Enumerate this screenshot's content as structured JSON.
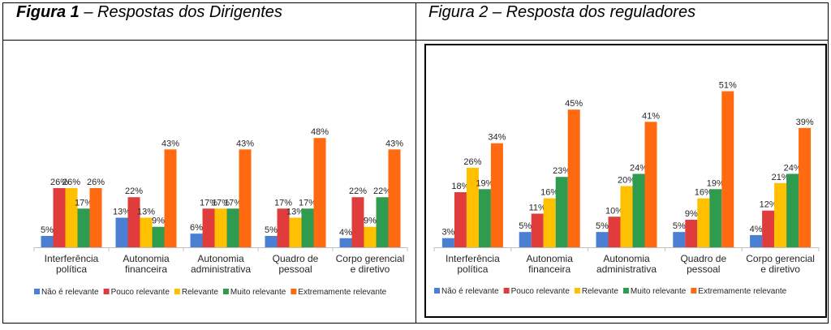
{
  "figures": [
    {
      "caption_number": "Figura 1",
      "caption_rest": " – Respostas dos Dirigentes"
    },
    {
      "caption_number": "Figura 2",
      "caption_rest": " – Resposta dos reguladores"
    }
  ],
  "colors": {
    "Não é relevante": "#4a7fd4",
    "Pouco relevante": "#e03c3c",
    "Relevante": "#ffc000",
    "Muito relevante": "#2e9b4f",
    "Extremamente relevante": "#ff6a10"
  },
  "chart_data": [
    {
      "type": "bar",
      "categories": [
        [
          "Interferência",
          "política"
        ],
        [
          "Autonomia",
          "financeira"
        ],
        [
          "Autonomia",
          "administrativa"
        ],
        [
          "Quadro de",
          "pessoal"
        ],
        [
          "Corpo gerencial",
          "e diretivo"
        ]
      ],
      "series": [
        {
          "name": "Não é relevante",
          "values": [
            5,
            13,
            6,
            5,
            4
          ]
        },
        {
          "name": "Pouco relevante",
          "values": [
            26,
            22,
            17,
            17,
            22
          ]
        },
        {
          "name": "Relevante",
          "values": [
            26,
            13,
            17,
            13,
            9
          ]
        },
        {
          "name": "Muito relevante",
          "values": [
            17,
            9,
            17,
            17,
            22
          ]
        },
        {
          "name": "Extremamente relevante",
          "values": [
            26,
            43,
            43,
            48,
            43
          ]
        }
      ],
      "value_suffix": "%",
      "ylim": [
        0,
        52
      ],
      "grid": false,
      "legend_position": "bottom"
    },
    {
      "type": "bar",
      "categories": [
        [
          "Interferência",
          "política"
        ],
        [
          "Autonomia",
          "financeira"
        ],
        [
          "Autonomia",
          "administrativa"
        ],
        [
          "Quadro de",
          "pessoal"
        ],
        [
          "Corpo gerencial",
          "e diretivo"
        ]
      ],
      "series": [
        {
          "name": "Não é relevante",
          "values": [
            3,
            5,
            5,
            5,
            4
          ]
        },
        {
          "name": "Pouco relevante",
          "values": [
            18,
            11,
            10,
            9,
            12
          ]
        },
        {
          "name": "Relevante",
          "values": [
            26,
            16,
            20,
            16,
            21
          ]
        },
        {
          "name": "Muito relevante",
          "values": [
            19,
            23,
            24,
            19,
            24
          ]
        },
        {
          "name": "Extremamente relevante",
          "values": [
            34,
            45,
            41,
            51,
            39
          ]
        }
      ],
      "value_suffix": "%",
      "ylim": [
        0,
        53
      ],
      "grid": false,
      "legend_position": "bottom"
    }
  ]
}
